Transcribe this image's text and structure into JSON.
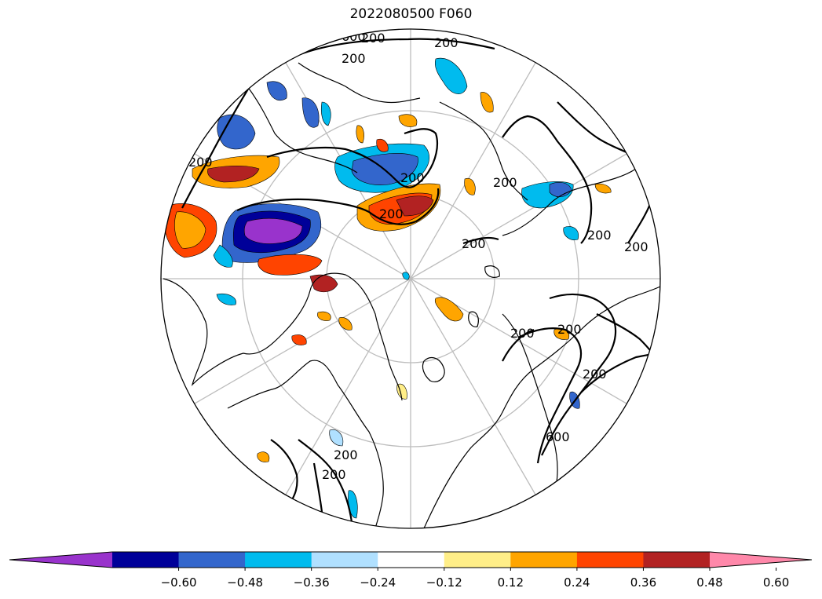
{
  "title": "2022080500 F060",
  "map": {
    "projection": "north-polar-stereographic",
    "graticule": "on",
    "contour_levels": [
      "200",
      "600"
    ],
    "contour_labels": [
      "600",
      "200",
      "200",
      "200",
      "200",
      "200",
      "200",
      "200",
      "200",
      "200",
      "200",
      "200",
      "200",
      "200",
      "600",
      "200",
      "200"
    ]
  },
  "colorbar": {
    "extend": "both",
    "boundaries": [
      "-0.60",
      "-0.48",
      "-0.36",
      "-0.24",
      "-0.12",
      "0.12",
      "0.24",
      "0.36",
      "0.48",
      "0.60"
    ],
    "tick_labels": [
      "−0.60",
      "−0.48",
      "−0.36",
      "−0.24",
      "−0.12",
      "0.12",
      "0.24",
      "0.36",
      "0.48",
      "0.60"
    ],
    "colors": [
      "#9933cc",
      "#000099",
      "#3366cc",
      "#00bbee",
      "#b0e0ff",
      "#ffffff",
      "#ffee88",
      "#ffa500",
      "#ff4400",
      "#b22222",
      "#ff88aa"
    ]
  }
}
